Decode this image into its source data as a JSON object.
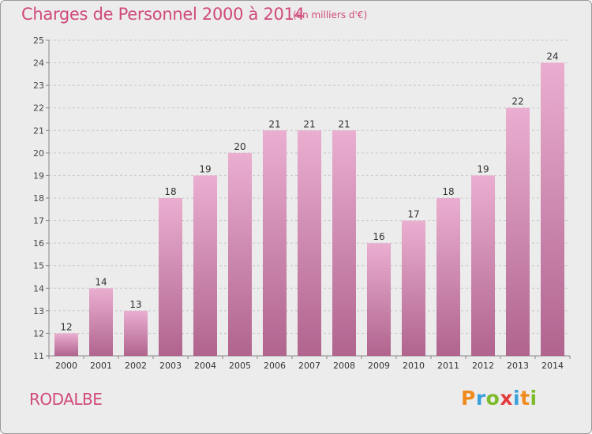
{
  "title": "Charges de Personnel 2000 à 2014",
  "subtitle": "(en milliers d'€)",
  "commune": "RODALBE",
  "logo": {
    "letters": [
      "P",
      "r",
      "o",
      "x",
      "i",
      "t",
      "i"
    ],
    "colors": [
      "#f08a1c",
      "#3aa0d8",
      "#7dbb2a",
      "#e33b3b",
      "#3aa0d8",
      "#f08a1c",
      "#7dbb2a"
    ]
  },
  "colors": {
    "bar_top": "#eaaed0",
    "bar_bottom": "#b0648e",
    "text": "#d04a7c"
  },
  "chart_data": {
    "type": "bar",
    "title": "Charges de Personnel 2000 à 2014",
    "subtitle": "(en milliers d'€)",
    "categories": [
      "2000",
      "2001",
      "2002",
      "2003",
      "2004",
      "2005",
      "2006",
      "2007",
      "2008",
      "2009",
      "2010",
      "2011",
      "2012",
      "2013",
      "2014"
    ],
    "values": [
      12,
      14,
      13,
      18,
      19,
      20,
      21,
      21,
      21,
      16,
      17,
      18,
      19,
      22,
      24
    ],
    "ylim": [
      11,
      25
    ],
    "yticks": [
      11,
      12,
      13,
      14,
      15,
      16,
      17,
      18,
      19,
      20,
      21,
      22,
      23,
      24,
      25
    ],
    "grid": true,
    "xlabel": "",
    "ylabel": ""
  }
}
